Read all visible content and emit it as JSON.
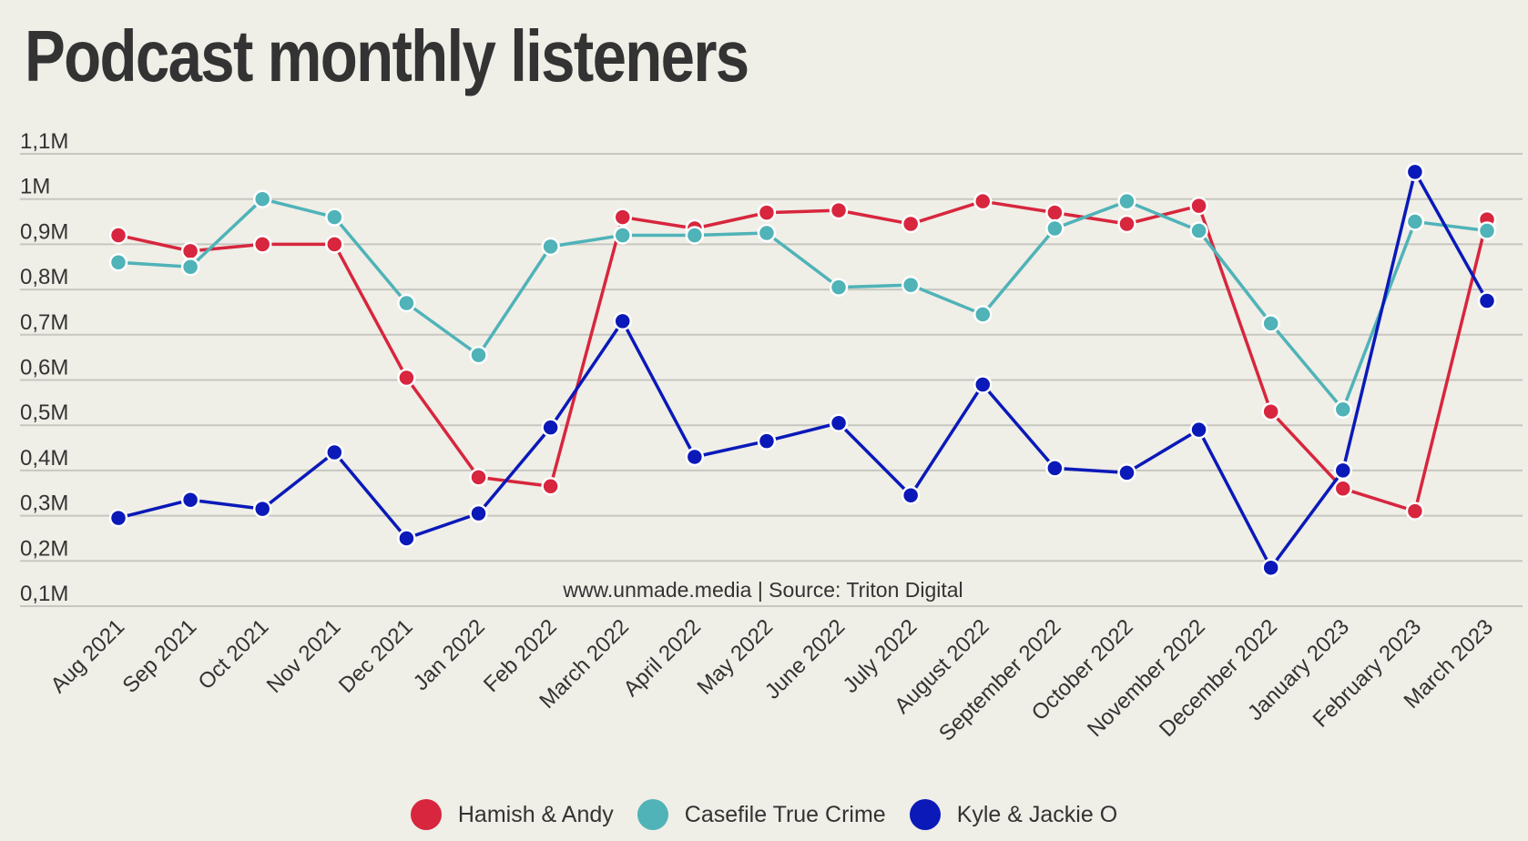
{
  "chart_data": {
    "type": "line",
    "title": "Podcast monthly listeners",
    "source": "www.unmade.media | Source: Triton Digital",
    "xlabel": "",
    "ylabel": "",
    "ylim": [
      0.1,
      1.1
    ],
    "y_ticks": [
      0.1,
      0.2,
      0.3,
      0.4,
      0.5,
      0.6,
      0.7,
      0.8,
      0.9,
      1.0,
      1.1
    ],
    "y_tick_labels": [
      "0,1M",
      "0,2M",
      "0,3M",
      "0,4M",
      "0,5M",
      "0,6M",
      "0,7M",
      "0,8M",
      "0,9M",
      "1M",
      "1,1M"
    ],
    "grid": true,
    "legend_position": "bottom",
    "categories": [
      "Aug 2021",
      "Sep 2021",
      "Oct 2021",
      "Nov 2021",
      "Dec 2021",
      "Jan 2022",
      "Feb 2022",
      "March 2022",
      "April 2022",
      "May 2022",
      "June 2022",
      "July 2022",
      "August 2022",
      "September 2022",
      "October 2022",
      "November 2022",
      "December 2022",
      "January 2023",
      "February 2023",
      "March 2023"
    ],
    "series": [
      {
        "name": "Hamish & Andy",
        "color": "#d7263d",
        "values": [
          0.92,
          0.885,
          0.9,
          0.9,
          0.605,
          0.385,
          0.365,
          0.96,
          0.935,
          0.97,
          0.975,
          0.945,
          0.995,
          0.97,
          0.945,
          0.985,
          0.53,
          0.36,
          0.31,
          0.955
        ]
      },
      {
        "name": "Casefile True Crime",
        "color": "#4fb3b8",
        "values": [
          0.86,
          0.85,
          1.0,
          0.96,
          0.77,
          0.655,
          0.895,
          0.92,
          0.92,
          0.925,
          0.805,
          0.81,
          0.745,
          0.935,
          0.995,
          0.93,
          0.725,
          0.535,
          0.95,
          0.93
        ]
      },
      {
        "name": "Kyle & Jackie O",
        "color": "#0a19b8",
        "values": [
          0.295,
          0.335,
          0.315,
          0.44,
          0.25,
          0.305,
          0.495,
          0.73,
          0.43,
          0.465,
          0.505,
          0.345,
          0.59,
          0.405,
          0.395,
          0.49,
          0.185,
          0.4,
          1.06,
          0.775
        ]
      }
    ]
  }
}
